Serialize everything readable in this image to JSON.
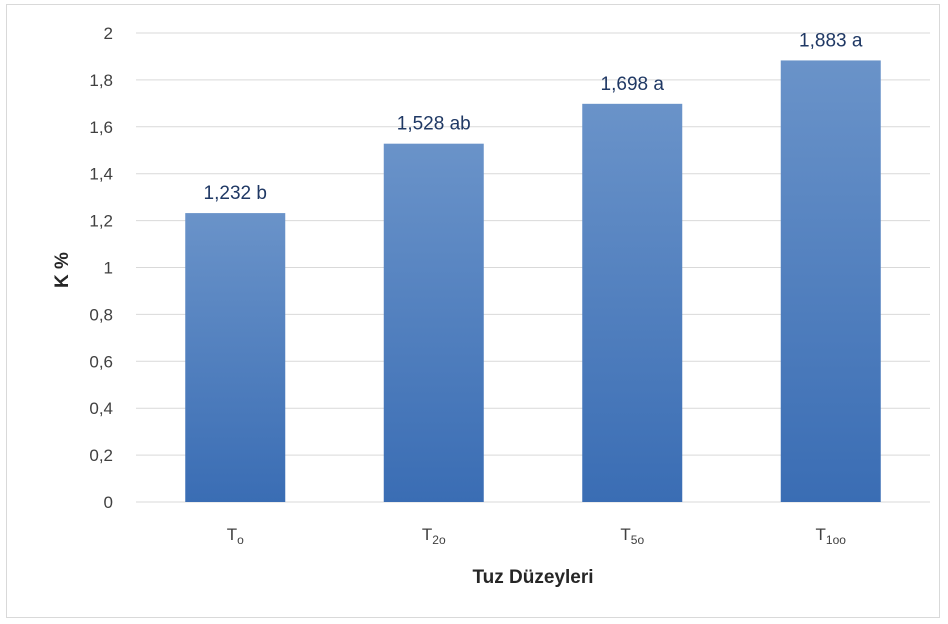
{
  "chart_data": {
    "type": "bar",
    "categories": [
      {
        "base": "T",
        "sub": "o"
      },
      {
        "base": "T",
        "sub": "2o"
      },
      {
        "base": "T",
        "sub": "5o"
      },
      {
        "base": "T",
        "sub": "1oo"
      }
    ],
    "values": [
      1.232,
      1.528,
      1.698,
      1.883
    ],
    "data_labels": [
      "1,232 b",
      "1,528 ab",
      "1,698 a",
      "1,883 a"
    ],
    "title": "",
    "xlabel": "Tuz Düzeyleri",
    "ylabel": "K %",
    "ylim": [
      0,
      2
    ],
    "yticks": [
      {
        "value": 0,
        "label": "0"
      },
      {
        "value": 0.2,
        "label": "0,2"
      },
      {
        "value": 0.4,
        "label": "0,4"
      },
      {
        "value": 0.6,
        "label": "0,6"
      },
      {
        "value": 0.8,
        "label": "0,8"
      },
      {
        "value": 1,
        "label": "1"
      },
      {
        "value": 1.2,
        "label": "1,2"
      },
      {
        "value": 1.4,
        "label": "1,4"
      },
      {
        "value": 1.6,
        "label": "1,6"
      },
      {
        "value": 1.8,
        "label": "1,8"
      },
      {
        "value": 2,
        "label": "2"
      }
    ],
    "grid": true,
    "legend": "none",
    "bar_color_top": "#6a93c9",
    "bar_color_bottom": "#3a6db4",
    "grid_color": "#d9d9d9",
    "data_label_color": "#1f3864"
  }
}
